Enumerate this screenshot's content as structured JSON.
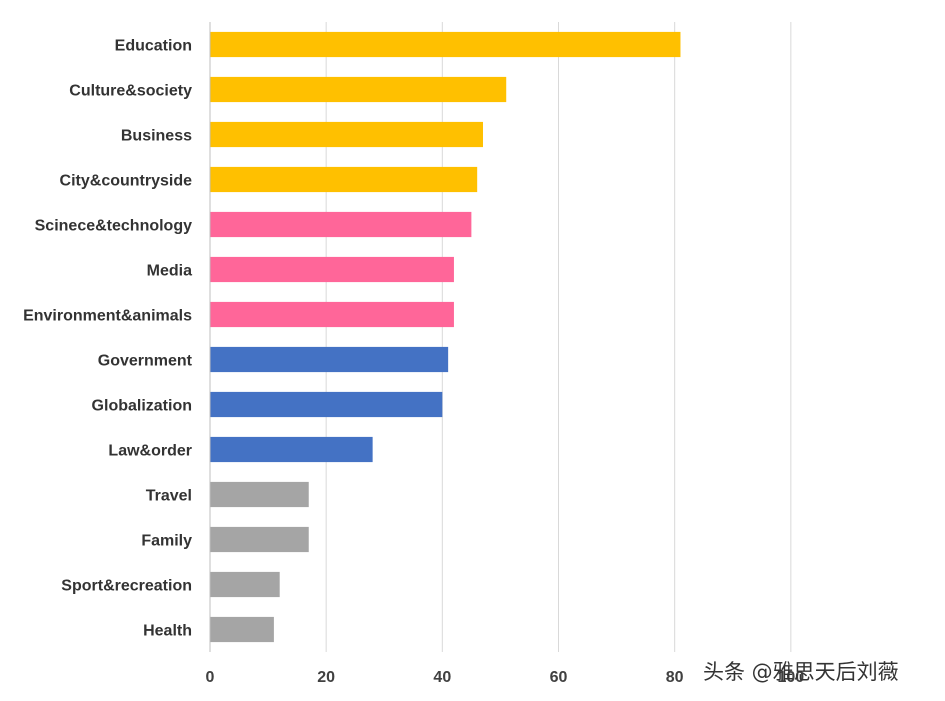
{
  "chart_data": {
    "type": "bar",
    "orientation": "horizontal",
    "categories": [
      "Education",
      "Culture&society",
      "Business",
      "City&countryside",
      "Scinece&technology",
      "Media",
      "Environment&animals",
      "Government",
      "Globalization",
      "Law&order",
      "Travel",
      "Family",
      "Sport&recreation",
      "Health"
    ],
    "values": [
      81,
      51,
      47,
      46,
      45,
      42,
      42,
      41,
      40,
      28,
      17,
      17,
      12,
      11
    ],
    "bar_colors": [
      "#FFC000",
      "#FFC000",
      "#FFC000",
      "#FFC000",
      "#FF6699",
      "#FF6699",
      "#FF6699",
      "#4472C4",
      "#4472C4",
      "#4472C4",
      "#A5A5A5",
      "#A5A5A5",
      "#A5A5A5",
      "#A5A5A5"
    ],
    "xlim": [
      0,
      120
    ],
    "xticks": [
      "0",
      "20",
      "40",
      "60",
      "80",
      "100"
    ],
    "grid": "vertical",
    "title": "",
    "xlabel": "",
    "ylabel": "",
    "legend": "none"
  },
  "watermark": "头条 @雅思天后刘薇"
}
